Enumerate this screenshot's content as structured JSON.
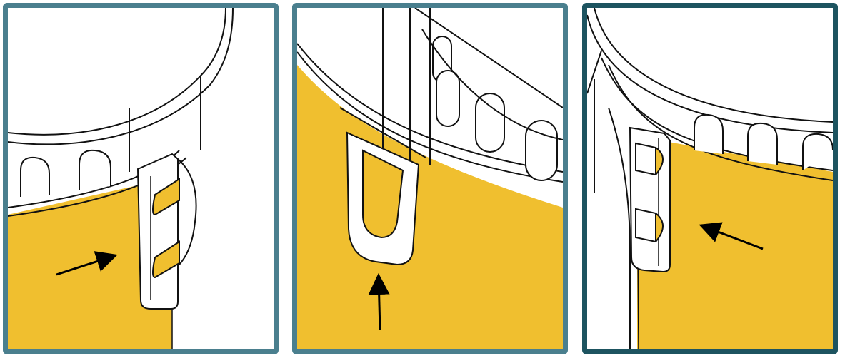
{
  "colors": {
    "panel_border": "#4a7f8e",
    "panel_border_active": "#1d5460",
    "liner_fill": "#f0bf2f",
    "line_art": "#111111",
    "arrow": "#000000",
    "background": "#ffffff"
  },
  "panels": [
    {
      "id": "step-1",
      "icon": "arrow-right-up-icon",
      "active": false
    },
    {
      "id": "step-2",
      "icon": "arrow-up-icon",
      "active": false
    },
    {
      "id": "step-3",
      "icon": "arrow-left-up-icon",
      "active": true
    }
  ]
}
